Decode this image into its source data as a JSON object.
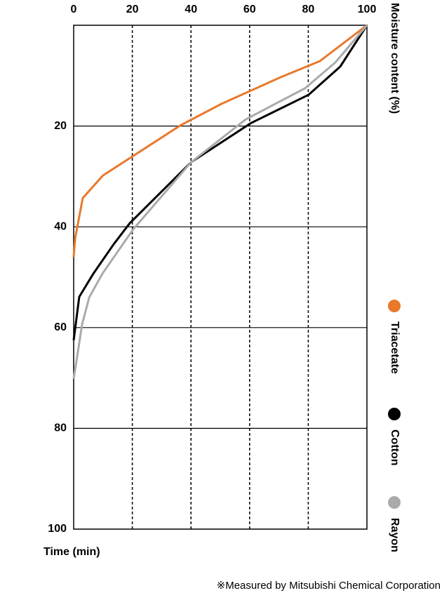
{
  "chart_data": {
    "type": "line",
    "x_label": "Moisture content (%)",
    "y_label": "Time (min)",
    "note": "※Measured by Mitsubishi Chemical Corporation",
    "xlim": [
      0,
      100
    ],
    "xticks": [
      0,
      20,
      40,
      60,
      80,
      100
    ],
    "ylim": [
      0,
      100
    ],
    "yticks": [
      20,
      40,
      60,
      80,
      100
    ],
    "y_reversed": true,
    "x_axis_top": true,
    "grid": true,
    "series": [
      {
        "name": "Triacetate",
        "color": "#e8792b",
        "x": [
          100,
          84,
          70.6,
          50.4,
          36.6,
          10,
          3.1,
          0.5,
          0
        ],
        "values": [
          0,
          7.1,
          10.3,
          15.6,
          19.8,
          29.8,
          34.3,
          42.3,
          46
        ]
      },
      {
        "name": "Cotton",
        "color": "#000000",
        "x": [
          100,
          90.9,
          80.1,
          60.5,
          40,
          19.1,
          13.6,
          6.7,
          1.9,
          0
        ],
        "values": [
          0,
          8.2,
          13.8,
          19.4,
          27.2,
          39.3,
          43.5,
          49.3,
          53.9,
          62.5
        ]
      },
      {
        "name": "Rayon",
        "color": "#aaaaaa",
        "x": [
          100,
          89.2,
          78.9,
          58.6,
          40,
          20.3,
          9.8,
          5.3,
          2.9,
          0
        ],
        "values": [
          0,
          7.4,
          12.5,
          18.7,
          27.2,
          40.5,
          49.3,
          54,
          59.3,
          70.2
        ]
      }
    ]
  }
}
